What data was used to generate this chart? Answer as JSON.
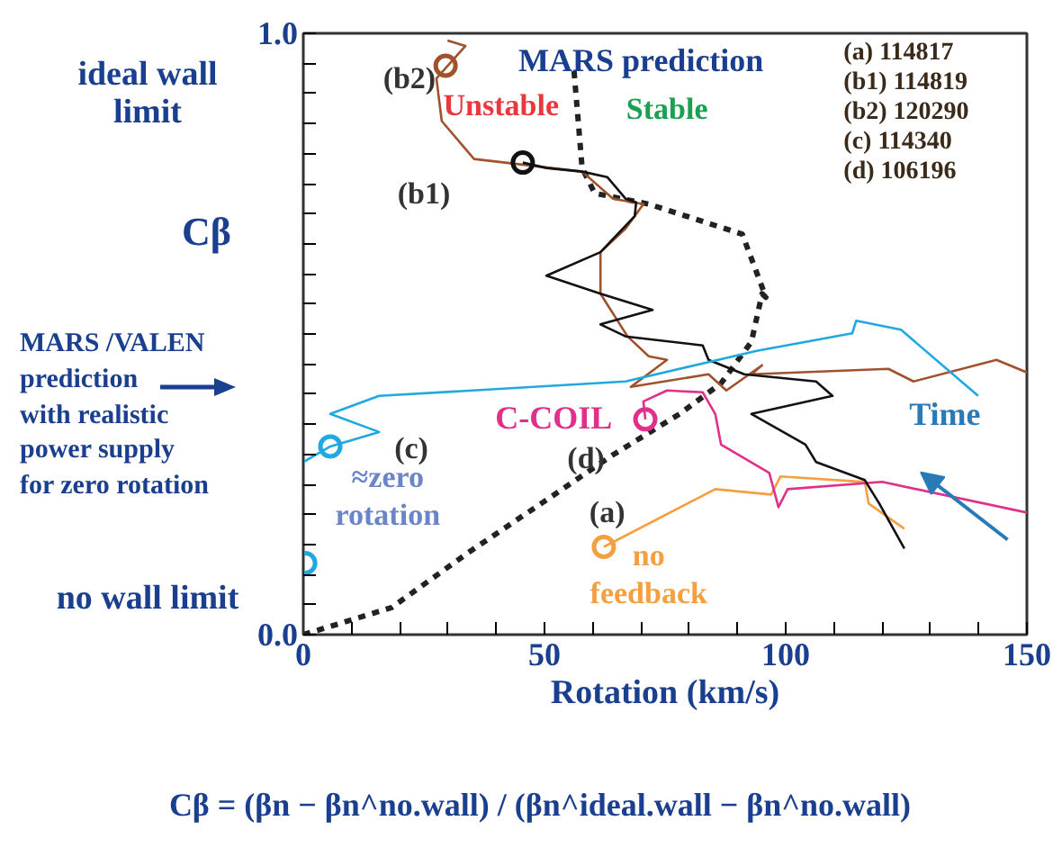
{
  "chart_data": {
    "type": "line",
    "xlabel": "Rotation (km/s)",
    "ylabel": "Cβ",
    "xlim": [
      0,
      150
    ],
    "ylim": [
      0,
      1
    ],
    "xticks": [
      0,
      {
        "value": 10,
        "label": null
      },
      {
        "value": 20,
        "label": null
      },
      {
        "value": 30,
        "label": null
      },
      {
        "value": 40,
        "label": null
      },
      50,
      {
        "value": 60,
        "label": null
      },
      {
        "value": 70,
        "label": null
      },
      {
        "value": 80,
        "label": null
      },
      {
        "value": 90,
        "label": null
      },
      100,
      {
        "value": 110,
        "label": null
      },
      {
        "value": 120,
        "label": null
      },
      {
        "value": 130,
        "label": null
      },
      {
        "value": 140,
        "label": null
      },
      150
    ],
    "yticks": [
      {
        "value": 0,
        "label": "0.0"
      },
      {
        "value": 0.05,
        "label": null
      },
      {
        "value": 0.1,
        "label": null
      },
      {
        "value": 0.15,
        "label": null
      },
      {
        "value": 0.2,
        "label": null
      },
      {
        "value": 0.25,
        "label": null
      },
      {
        "value": 0.3,
        "label": null
      },
      {
        "value": 0.35,
        "label": null
      },
      {
        "value": 0.4,
        "label": null
      },
      {
        "value": 0.45,
        "label": null
      },
      {
        "value": 0.5,
        "label": null
      },
      {
        "value": 0.55,
        "label": null
      },
      {
        "value": 0.6,
        "label": null
      },
      {
        "value": 0.65,
        "label": null
      },
      {
        "value": 0.7,
        "label": null
      },
      {
        "value": 0.75,
        "label": null
      },
      {
        "value": 0.8,
        "label": null
      },
      {
        "value": 0.85,
        "label": null
      },
      {
        "value": 0.9,
        "label": null
      },
      {
        "value": 0.95,
        "label": null
      },
      {
        "value": 1,
        "label": "1.0"
      }
    ],
    "grid": false,
    "series": [
      {
        "line_style": "dashed",
        "color": "#222222",
        "x": [
          0,
          18.3,
          34.3,
          49.3,
          64.2,
          78,
          86.6,
          92.9,
          95.1,
          95.9,
          91,
          71.6,
          60.4,
          57.8,
          56
        ],
        "values": [
          0,
          0.045,
          0.137,
          0.218,
          0.299,
          0.367,
          0.418,
          0.487,
          0.567,
          0.561,
          0.666,
          0.716,
          0.734,
          0.776,
          0.949
        ]
      },
      {
        "color": "#f5a040",
        "x": [
          62.3,
          85.4,
          97,
          98.9,
          116.4,
          117.2,
          124.6
        ],
        "values": [
          0.146,
          0.242,
          0.233,
          0.263,
          0.254,
          0.218,
          0.176
        ]
      },
      {
        "color": "#e0308a",
        "x": [
          70.9,
          70.5,
          75.4,
          82.8,
          85.4,
          86.6,
          96.6,
          98.5,
          100.4,
          120,
          150
        ],
        "values": [
          0.358,
          0.388,
          0.406,
          0.403,
          0.367,
          0.316,
          0.269,
          0.212,
          0.242,
          0.254,
          0.203
        ]
      },
      {
        "color": "#a0522d",
        "x": [
          29.9,
          33.6,
          27.6,
          28.7,
          35.4,
          57.8,
          64.2,
          70.5,
          66.8,
          61.6,
          61.6,
          67.2,
          71.6,
          75.4,
          67.9,
          84,
          87.7,
          95.1,
          92.9,
          121.3,
          126.5,
          143.7,
          150
        ],
        "values": [
          0.988,
          0.979,
          0.925,
          0.854,
          0.791,
          0.77,
          0.725,
          0.716,
          0.675,
          0.636,
          0.567,
          0.496,
          0.463,
          0.457,
          0.412,
          0.433,
          0.406,
          0.448,
          0.433,
          0.442,
          0.421,
          0.457,
          0.436
        ]
      },
      {
        "color": "#111111",
        "x": [
          45.5,
          50.4,
          57.8,
          63,
          66.8,
          69,
          68.7,
          61.6,
          50.4,
          61.6,
          72.4,
          61.6,
          66.8,
          82.8,
          84,
          91.4,
          106.3,
          109.7,
          92.9,
          104.1,
          106.3,
          116.4,
          119.4,
          124.6
        ],
        "values": [
          0.785,
          0.776,
          0.77,
          0.761,
          0.725,
          0.719,
          0.696,
          0.636,
          0.597,
          0.567,
          0.54,
          0.516,
          0.496,
          0.481,
          0.457,
          0.433,
          0.421,
          0.397,
          0.367,
          0.316,
          0.287,
          0.257,
          0.218,
          0.143
        ]
      },
      {
        "color": "#20a8e0",
        "x": [
          0,
          5.6,
          15.7,
          5.6,
          15.7,
          66.8,
          94,
          113.8,
          114.6,
          123.9,
          139.9
        ],
        "values": [
          0.287,
          0.313,
          0.337,
          0.367,
          0.397,
          0.421,
          0.472,
          0.501,
          0.522,
          0.507,
          0.397
        ]
      },
      {
        "type": "scatter",
        "marker": "circle",
        "color": "#f5a040",
        "x": [
          62.3
        ],
        "values": [
          0.146
        ]
      },
      {
        "type": "scatter",
        "marker": "circle",
        "color": "#111111",
        "x": [
          45.5
        ],
        "values": [
          0.785
        ]
      },
      {
        "type": "scatter",
        "marker": "circle",
        "color": "#a0522d",
        "x": [
          29.5
        ],
        "values": [
          0.946
        ]
      },
      {
        "type": "scatter",
        "marker": "circle",
        "color": "#20a8e0",
        "x": [
          5.6,
          0.4
        ],
        "values": [
          0.313,
          0.119
        ]
      },
      {
        "type": "scatter",
        "marker": "circle",
        "color": "#e0308a",
        "x": [
          70.9
        ],
        "values": [
          0.358
        ]
      }
    ],
    "annotations": [
      "ideal wall limit",
      "no wall limit",
      "MARS /VALEN\nprediction\nwith realistic\npower supply\nfor zero rotation",
      "(a) 114817\n(b1) 114819\n(b2) 120290\n(c) 114340\n(d) 106196",
      "Cβ = (βn − βn^no.wall) / (βn^ideal.wall − βn^no.wall)",
      "MARS prediction",
      "Unstable",
      "Stable",
      "(b2)",
      "(b1)",
      "C-COIL",
      "(d)",
      "(c)",
      "≈zero\nrotation",
      "(a)",
      "no\nfeedback",
      "Time"
    ]
  }
}
